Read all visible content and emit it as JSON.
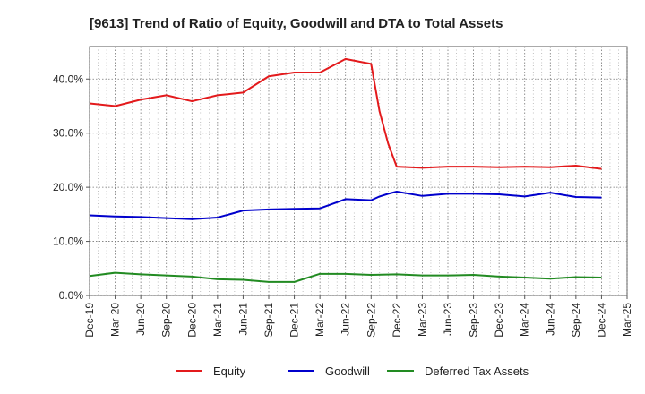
{
  "chart_data": {
    "type": "line",
    "title": "[9613]  Trend of Ratio of Equity, Goodwill and DTA to Total Assets",
    "xlabel": "",
    "ylabel": "",
    "x_tick_labels": [
      "Dec-19",
      "Mar-20",
      "Jun-20",
      "Sep-20",
      "Dec-20",
      "Mar-21",
      "Jun-21",
      "Sep-21",
      "Dec-21",
      "Mar-22",
      "Jun-22",
      "Sep-22",
      "Dec-22",
      "Mar-23",
      "Jun-23",
      "Sep-23",
      "Dec-23",
      "Mar-24",
      "Jun-24",
      "Sep-24",
      "Dec-24",
      "Mar-25"
    ],
    "y_tick_labels": [
      "0.0%",
      "10.0%",
      "20.0%",
      "30.0%",
      "40.0%"
    ],
    "y_ticks": [
      0,
      10,
      20,
      30,
      40
    ],
    "ylim": [
      0,
      46
    ],
    "grid": true,
    "legend_position": "bottom",
    "series": [
      {
        "name": "Equity",
        "color": "#e31a1c",
        "x": [
          0,
          1,
          2,
          3,
          4,
          5,
          6,
          7,
          8,
          9,
          10,
          11,
          11.33,
          11.67,
          12,
          13,
          14,
          15,
          16,
          17,
          18,
          19,
          20
        ],
        "values": [
          35.5,
          35.0,
          36.2,
          37.0,
          35.9,
          37.0,
          37.5,
          40.5,
          41.2,
          41.2,
          43.7,
          42.8,
          34.0,
          28.0,
          23.8,
          23.6,
          23.8,
          23.8,
          23.7,
          23.8,
          23.7,
          24.0,
          23.4
        ]
      },
      {
        "name": "Goodwill",
        "color": "#0000cc",
        "x": [
          0,
          1,
          2,
          3,
          4,
          5,
          6,
          7,
          8,
          9,
          10,
          11,
          11.33,
          11.67,
          12,
          13,
          14,
          15,
          16,
          17,
          18,
          19,
          20
        ],
        "values": [
          14.8,
          14.6,
          14.5,
          14.3,
          14.1,
          14.4,
          15.7,
          15.9,
          16.0,
          16.1,
          17.8,
          17.6,
          18.3,
          18.8,
          19.2,
          18.4,
          18.8,
          18.8,
          18.7,
          18.3,
          19.0,
          18.2,
          18.1
        ]
      },
      {
        "name": "Deferred Tax Assets",
        "color": "#228b22",
        "x": [
          0,
          1,
          2,
          3,
          4,
          5,
          6,
          7,
          8,
          9,
          10,
          11,
          12,
          13,
          14,
          15,
          16,
          17,
          18,
          19,
          20
        ],
        "values": [
          3.6,
          4.2,
          3.9,
          3.7,
          3.5,
          3.0,
          2.9,
          2.5,
          2.5,
          4.0,
          4.0,
          3.8,
          3.9,
          3.7,
          3.7,
          3.8,
          3.5,
          3.3,
          3.1,
          3.4,
          3.3
        ]
      }
    ]
  }
}
